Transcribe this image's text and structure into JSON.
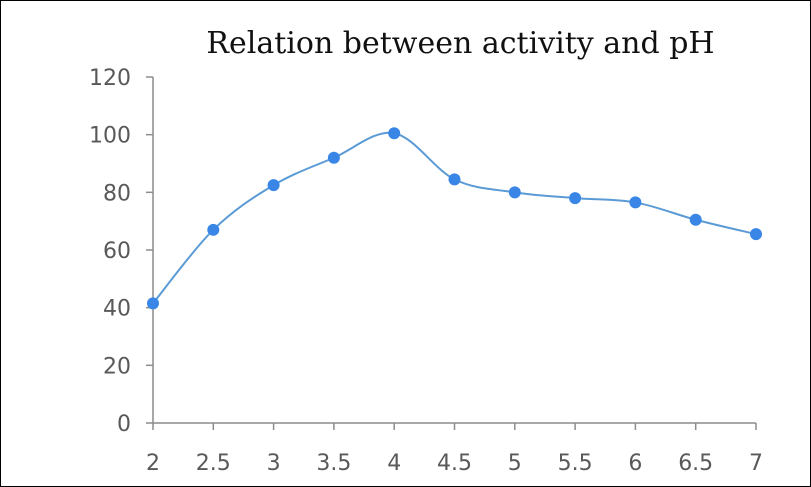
{
  "chart_data": {
    "type": "line",
    "title": "Relation between activity and pH",
    "xlabel": "",
    "ylabel": "",
    "x": [
      2,
      2.5,
      3,
      3.5,
      4,
      4.5,
      5,
      5.5,
      6,
      6.5,
      7
    ],
    "x_tick_labels": [
      "2",
      "2.5",
      "3",
      "3.5",
      "4",
      "4.5",
      "5",
      "5.5",
      "6",
      "6.5",
      "7"
    ],
    "y_ticks": [
      0,
      20,
      40,
      60,
      80,
      100,
      120
    ],
    "y_tick_labels": [
      "0",
      "20",
      "40",
      "60",
      "80",
      "100",
      "120"
    ],
    "xlim": [
      2,
      7
    ],
    "ylim": [
      0,
      120
    ],
    "series": [
      {
        "values": [
          41.5,
          67,
          82.5,
          92,
          100.5,
          84.5,
          80,
          78,
          76.5,
          70.5,
          65.5
        ]
      }
    ],
    "grid": false,
    "legend": "none",
    "colors": {
      "line": "#5b9bd5",
      "marker": "#3a86e6",
      "axis": "#8c8c8c"
    }
  }
}
